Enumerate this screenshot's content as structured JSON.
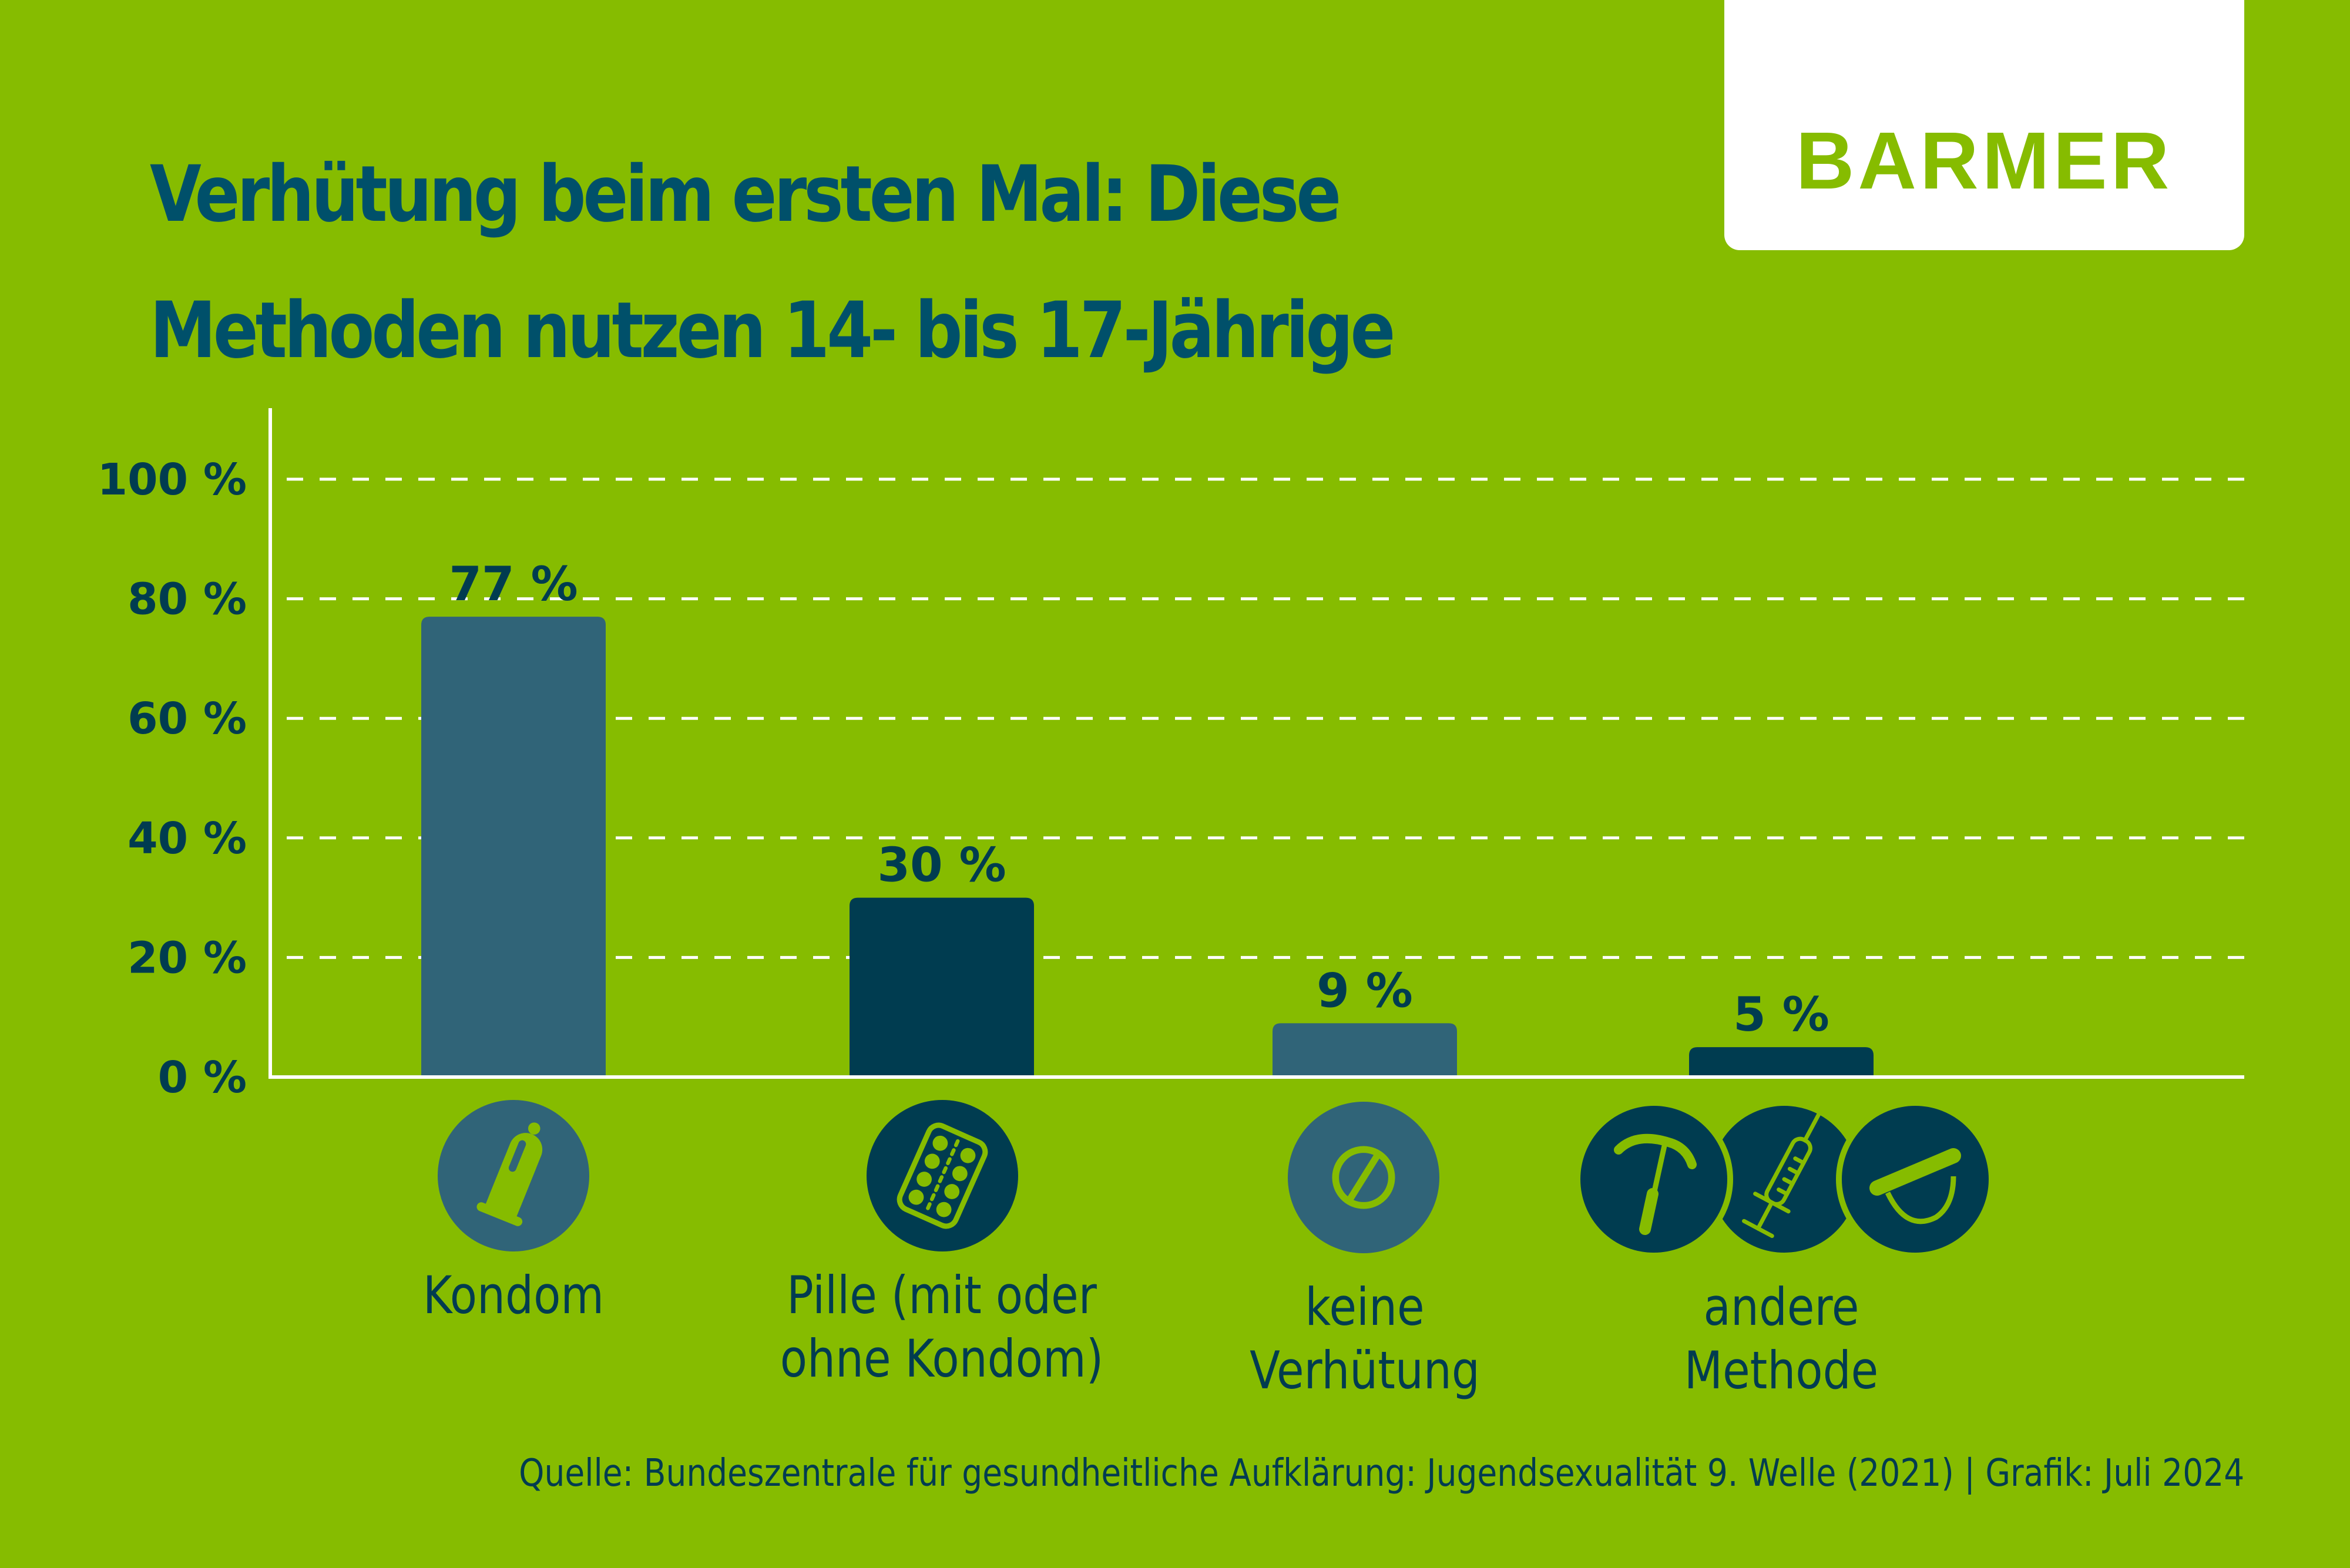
{
  "title_lines": [
    "Verhütung beim ersten Mal: Diese",
    "Methoden nutzen 14- bis 17-Jährige"
  ],
  "logo": "BARMER",
  "colors": {
    "background": "#86bc00",
    "bar_light": "#306478",
    "bar_dark": "#003c50",
    "text": "#003c50",
    "title": "#00506a",
    "grid": "#ffffff"
  },
  "chart_data": {
    "type": "bar",
    "title": "Verhütung beim ersten Mal: Diese Methoden nutzen 14- bis 17-Jährige",
    "xlabel": "",
    "ylabel": "",
    "ylim": [
      0,
      100
    ],
    "yticks": [
      0,
      20,
      40,
      60,
      80,
      100
    ],
    "ytick_labels": [
      "0 %",
      "20 %",
      "40 %",
      "60 %",
      "80 %",
      "100 %"
    ],
    "grid": true,
    "categories": [
      "Kondom",
      "Pille (mit oder ohne Kondom)",
      "keine Verhütung",
      "andere Methode"
    ],
    "category_lines": [
      [
        "Kondom"
      ],
      [
        "Pille (mit oder",
        "ohne Kondom)"
      ],
      [
        "keine",
        "Verhütung"
      ],
      [
        "andere Methode"
      ]
    ],
    "values": [
      77,
      30,
      9,
      5
    ],
    "value_labels": [
      "77 %",
      "30 %",
      "9 %",
      "5 %"
    ],
    "bar_colors": [
      "#306478",
      "#003c50",
      "#306478",
      "#003c50"
    ],
    "icons": [
      [
        "condom-icon"
      ],
      [
        "pill-blister-icon"
      ],
      [
        "no-symbol-icon"
      ],
      [
        "iud-icon",
        "syringe-icon",
        "diaphragm-icon"
      ]
    ]
  },
  "source": "Quelle: Bundeszentrale für gesundheitliche Aufklärung: Jugendsexualität 9. Welle (2021) | Grafik: Juli 2024"
}
